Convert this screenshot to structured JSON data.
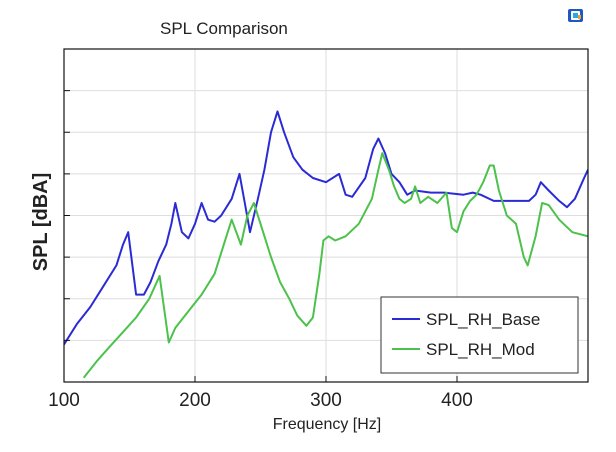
{
  "chart_data": {
    "type": "line",
    "title": "SPL Comparison",
    "xlabel": "Frequency [Hz]",
    "ylabel": "SPL [dBA]",
    "xlim": [
      100,
      500
    ],
    "ylim": [
      0,
      8
    ],
    "x_ticks": [
      100,
      200,
      300,
      400
    ],
    "grid": true,
    "legend_position": "bottom-right",
    "series": [
      {
        "name": "SPL_RH_Base",
        "color": "#2b2bd6",
        "points": [
          [
            100,
            0.9
          ],
          [
            110,
            1.4
          ],
          [
            120,
            1.8
          ],
          [
            130,
            2.3
          ],
          [
            140,
            2.8
          ],
          [
            145,
            3.3
          ],
          [
            149,
            3.6
          ],
          [
            155,
            2.1
          ],
          [
            161,
            2.1
          ],
          [
            166,
            2.4
          ],
          [
            172,
            2.9
          ],
          [
            178,
            3.3
          ],
          [
            182,
            3.8
          ],
          [
            185,
            4.3
          ],
          [
            190,
            3.6
          ],
          [
            195,
            3.45
          ],
          [
            200,
            3.8
          ],
          [
            205,
            4.3
          ],
          [
            210,
            3.9
          ],
          [
            215,
            3.85
          ],
          [
            220,
            4.0
          ],
          [
            228,
            4.4
          ],
          [
            234,
            5.0
          ],
          [
            238,
            4.3
          ],
          [
            242,
            3.6
          ],
          [
            248,
            4.4
          ],
          [
            253,
            5.1
          ],
          [
            258,
            6.0
          ],
          [
            263,
            6.5
          ],
          [
            268,
            6.0
          ],
          [
            275,
            5.4
          ],
          [
            282,
            5.1
          ],
          [
            290,
            4.9
          ],
          [
            300,
            4.8
          ],
          [
            310,
            5.0
          ],
          [
            315,
            4.5
          ],
          [
            320,
            4.45
          ],
          [
            330,
            4.9
          ],
          [
            336,
            5.6
          ],
          [
            340,
            5.85
          ],
          [
            345,
            5.5
          ],
          [
            350,
            5.0
          ],
          [
            356,
            4.8
          ],
          [
            362,
            4.5
          ],
          [
            368,
            4.6
          ],
          [
            380,
            4.55
          ],
          [
            390,
            4.55
          ],
          [
            405,
            4.5
          ],
          [
            412,
            4.55
          ],
          [
            418,
            4.5
          ],
          [
            428,
            4.35
          ],
          [
            440,
            4.35
          ],
          [
            455,
            4.35
          ],
          [
            460,
            4.5
          ],
          [
            464,
            4.8
          ],
          [
            470,
            4.6
          ],
          [
            478,
            4.35
          ],
          [
            484,
            4.2
          ],
          [
            490,
            4.4
          ],
          [
            497,
            4.9
          ],
          [
            500,
            5.1
          ]
        ]
      },
      {
        "name": "SPL_RH_Mod",
        "color": "#4cc24c",
        "points": [
          [
            115,
            0.1
          ],
          [
            125,
            0.5
          ],
          [
            135,
            0.85
          ],
          [
            145,
            1.2
          ],
          [
            155,
            1.55
          ],
          [
            165,
            2.0
          ],
          [
            173,
            2.55
          ],
          [
            180,
            0.95
          ],
          [
            185,
            1.3
          ],
          [
            195,
            1.7
          ],
          [
            205,
            2.1
          ],
          [
            215,
            2.6
          ],
          [
            222,
            3.3
          ],
          [
            228,
            3.9
          ],
          [
            235,
            3.3
          ],
          [
            240,
            4.0
          ],
          [
            245,
            4.3
          ],
          [
            250,
            3.8
          ],
          [
            258,
            3.0
          ],
          [
            265,
            2.4
          ],
          [
            272,
            2.0
          ],
          [
            278,
            1.6
          ],
          [
            285,
            1.35
          ],
          [
            290,
            1.55
          ],
          [
            295,
            2.6
          ],
          [
            298,
            3.4
          ],
          [
            302,
            3.5
          ],
          [
            307,
            3.4
          ],
          [
            315,
            3.5
          ],
          [
            325,
            3.8
          ],
          [
            335,
            4.4
          ],
          [
            340,
            5.1
          ],
          [
            343,
            5.5
          ],
          [
            348,
            5.1
          ],
          [
            352,
            4.7
          ],
          [
            356,
            4.4
          ],
          [
            360,
            4.3
          ],
          [
            365,
            4.4
          ],
          [
            368,
            4.7
          ],
          [
            372,
            4.3
          ],
          [
            378,
            4.45
          ],
          [
            385,
            4.3
          ],
          [
            392,
            4.55
          ],
          [
            396,
            3.7
          ],
          [
            400,
            3.6
          ],
          [
            405,
            4.1
          ],
          [
            410,
            4.35
          ],
          [
            415,
            4.5
          ],
          [
            420,
            4.8
          ],
          [
            425,
            5.2
          ],
          [
            428,
            5.2
          ],
          [
            432,
            4.6
          ],
          [
            438,
            4.0
          ],
          [
            445,
            3.8
          ],
          [
            451,
            3.0
          ],
          [
            454,
            2.8
          ],
          [
            460,
            3.5
          ],
          [
            465,
            4.3
          ],
          [
            470,
            4.25
          ],
          [
            478,
            3.9
          ],
          [
            488,
            3.6
          ],
          [
            500,
            3.5
          ]
        ]
      }
    ]
  }
}
